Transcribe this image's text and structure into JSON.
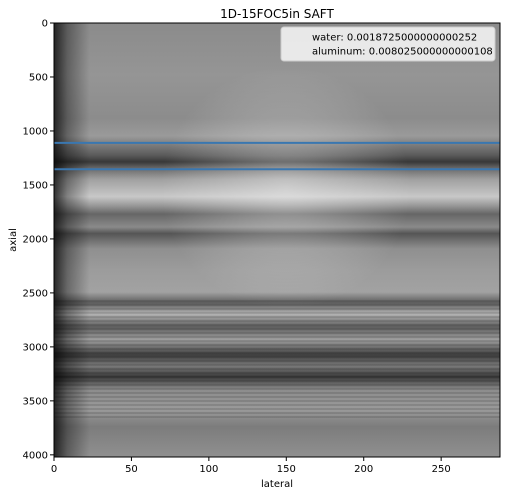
{
  "chart_data": {
    "type": "heatmap",
    "title": "1D-15FOC5in SAFT",
    "xlabel": "lateral",
    "ylabel": "axial",
    "xlim": [
      0,
      288
    ],
    "ylim": [
      4020,
      0
    ],
    "xticks": [
      0,
      50,
      100,
      150,
      200,
      250
    ],
    "yticks": [
      0,
      500,
      1000,
      1500,
      2000,
      2500,
      3000,
      3500,
      4000
    ],
    "colormap": "gray",
    "series": [
      {
        "name": "water: 0.0018725000000000252",
        "type": "hline",
        "y": 1110,
        "color": "#3a77b0"
      },
      {
        "name": "aluminum: 0.008025000000000108",
        "type": "hline",
        "y": 1355,
        "color": "#3a77b0"
      }
    ],
    "legend_position": "top-right",
    "grid": false
  }
}
